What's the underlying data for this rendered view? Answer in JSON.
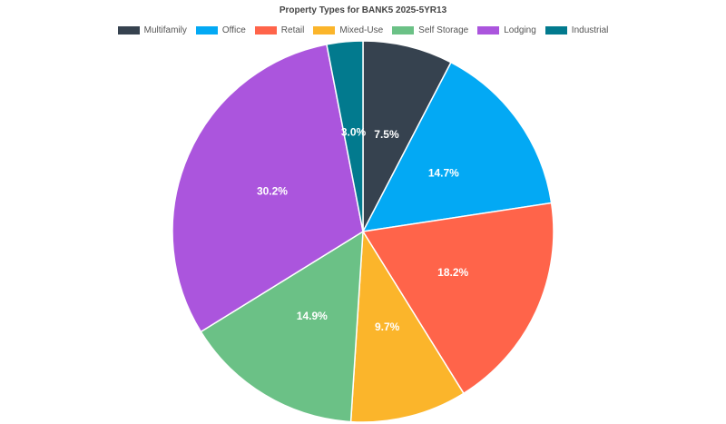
{
  "chart_data": {
    "type": "pie",
    "title": "Property Types for BANK5 2025-5YR13",
    "legend_position": "top-center",
    "slices": [
      {
        "name": "Multifamily",
        "value": 7.5,
        "label": "7.5%",
        "color": "#36424f"
      },
      {
        "name": "Office",
        "value": 14.7,
        "label": "14.7%",
        "color": "#03a9f4"
      },
      {
        "name": "Retail",
        "value": 18.2,
        "label": "18.2%",
        "color": "#ff644a"
      },
      {
        "name": "Mixed-Use",
        "value": 9.7,
        "label": "9.7%",
        "color": "#fbb52b"
      },
      {
        "name": "Self Storage",
        "value": 14.9,
        "label": "14.9%",
        "color": "#6bc186"
      },
      {
        "name": "Lodging",
        "value": 30.2,
        "label": "30.2%",
        "color": "#ab55dd"
      },
      {
        "name": "Industrial",
        "value": 3.0,
        "label": "3.0%",
        "color": "#027a8e"
      }
    ]
  }
}
